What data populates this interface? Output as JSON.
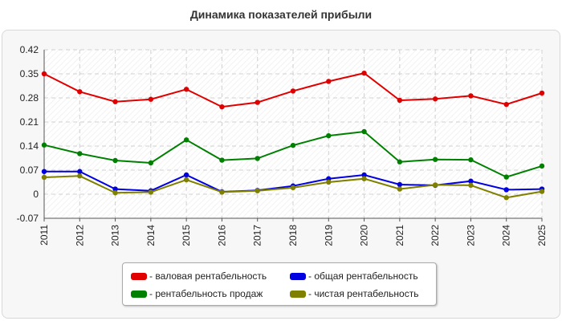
{
  "chart_data": {
    "type": "line",
    "title": "Динамика показателей прибыли",
    "x": [
      "2011",
      "2012",
      "2013",
      "2014",
      "2015",
      "2016",
      "2017",
      "2018",
      "2019",
      "2020",
      "2021",
      "2022",
      "2023",
      "2024",
      "2025"
    ],
    "ylim": [
      -0.07,
      0.42
    ],
    "yticks": [
      "0.42",
      "0.35",
      "0.28",
      "0.21",
      "0.14",
      "0.07",
      "0",
      "-0.07"
    ],
    "grid": true,
    "legend_position": "bottom-center",
    "series": [
      {
        "name": "- валовая рентабельность",
        "color": "#e00000",
        "values": [
          0.35,
          0.298,
          0.269,
          0.276,
          0.305,
          0.254,
          0.267,
          0.3,
          0.328,
          0.352,
          0.273,
          0.277,
          0.286,
          0.261,
          0.294
        ]
      },
      {
        "name": "- рентабельность продаж",
        "color": "#008000",
        "values": [
          0.143,
          0.118,
          0.098,
          0.091,
          0.158,
          0.099,
          0.104,
          0.142,
          0.17,
          0.182,
          0.094,
          0.101,
          0.1,
          0.05,
          0.082
        ]
      },
      {
        "name": "- общая рентабельность",
        "color": "#0000e0",
        "values": [
          0.066,
          0.066,
          0.015,
          0.01,
          0.056,
          0.007,
          0.011,
          0.024,
          0.045,
          0.056,
          0.028,
          0.026,
          0.038,
          0.013,
          0.015
        ]
      },
      {
        "name": "- чистая рентабельность",
        "color": "#808000",
        "values": [
          0.049,
          0.053,
          0.004,
          0.006,
          0.042,
          0.006,
          0.01,
          0.019,
          0.035,
          0.045,
          0.015,
          0.027,
          0.026,
          -0.01,
          0.008
        ]
      }
    ]
  }
}
